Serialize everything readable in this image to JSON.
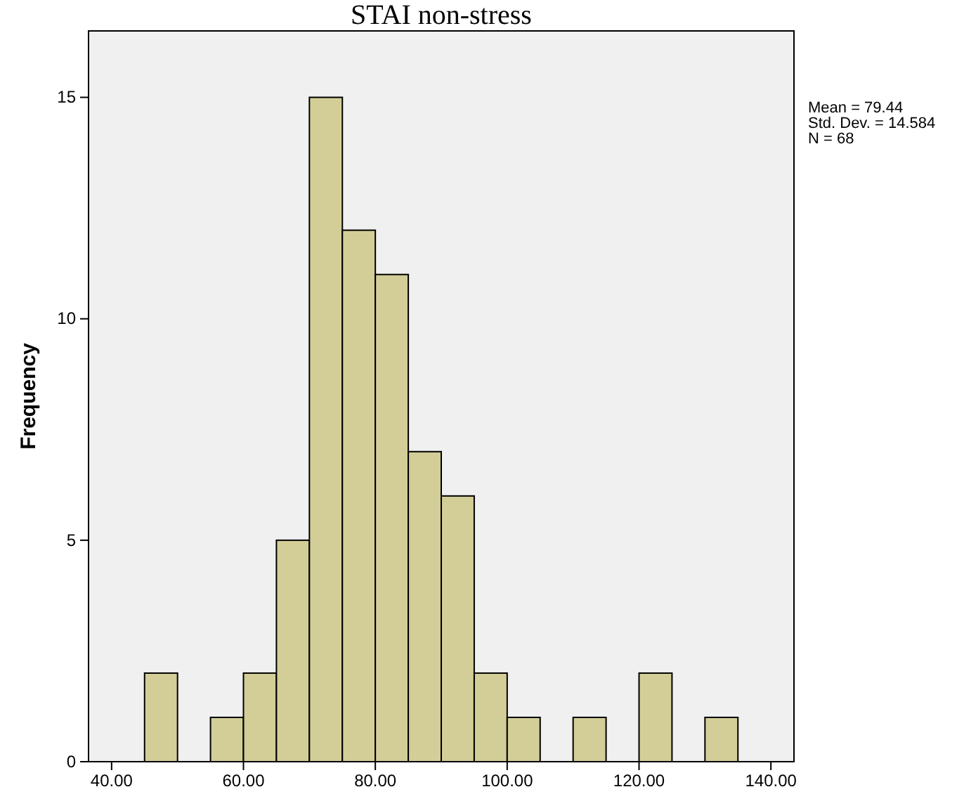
{
  "chart_data": {
    "type": "histogram",
    "title": "STAI non-stress",
    "ylabel": "Frequency",
    "bins": [
      45,
      50,
      55,
      60,
      65,
      70,
      75,
      80,
      85,
      90,
      95,
      100,
      105,
      110,
      115,
      120,
      125,
      130,
      135
    ],
    "values": [
      2,
      0,
      1,
      2,
      5,
      15,
      12,
      11,
      7,
      6,
      2,
      1,
      0,
      1,
      0,
      2,
      0,
      1
    ],
    "color": "#d3ce97",
    "xlim": [
      36.5,
      143.5
    ],
    "xticks": [
      {
        "value": 40,
        "label": "40.00"
      },
      {
        "value": 60,
        "label": "60.00"
      },
      {
        "value": 80,
        "label": "80.00"
      },
      {
        "value": 100,
        "label": "100.00"
      },
      {
        "value": 120,
        "label": "120.00"
      },
      {
        "value": 140,
        "label": "140.00"
      }
    ],
    "ylim": [
      0,
      16.5
    ],
    "yticks": [
      0,
      5,
      10,
      15
    ],
    "annotations": [
      "Mean = 79.44",
      "Std. Dev. = 14.584",
      "N = 68"
    ]
  }
}
